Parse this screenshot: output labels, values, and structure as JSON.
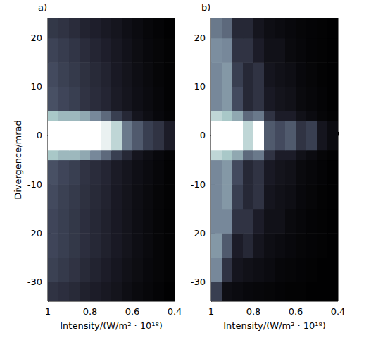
{
  "chart_data": [
    {
      "type": "heatmap",
      "panel": "a)",
      "ylabel": "Divergence/mrad",
      "xlabel": "Intensity/(W/m² · 10¹⁸)",
      "xlim": [
        1,
        0.4
      ],
      "xticks": [
        1,
        0.8,
        0.6,
        0.4
      ],
      "ylim": [
        -34,
        24
      ],
      "yticks": [
        -30,
        -20,
        -10,
        0,
        10,
        20
      ],
      "color_range": [
        0,
        1
      ],
      "x_edges": [
        1,
        0.95,
        0.9,
        0.85,
        0.8,
        0.75,
        0.7,
        0.65,
        0.6,
        0.55,
        0.5,
        0.45,
        0.4
      ],
      "y_edges": [
        -34,
        -30,
        -25,
        -20,
        -15,
        -10,
        -5,
        -3,
        3,
        5,
        10,
        15,
        20,
        24
      ],
      "cells": [
        [
          0.3,
          0.28,
          0.26,
          0.22,
          0.2,
          0.17,
          0.14,
          0.1,
          0.07,
          0.05,
          0.03,
          0.01
        ],
        [
          0.36,
          0.33,
          0.3,
          0.26,
          0.23,
          0.2,
          0.16,
          0.12,
          0.09,
          0.06,
          0.04,
          0.02
        ],
        [
          0.38,
          0.35,
          0.32,
          0.28,
          0.25,
          0.22,
          0.18,
          0.14,
          0.1,
          0.07,
          0.04,
          0.02
        ],
        [
          0.38,
          0.35,
          0.32,
          0.28,
          0.25,
          0.22,
          0.18,
          0.14,
          0.1,
          0.07,
          0.04,
          0.02
        ],
        [
          0.4,
          0.36,
          0.33,
          0.29,
          0.26,
          0.23,
          0.18,
          0.14,
          0.1,
          0.07,
          0.04,
          0.02
        ],
        [
          0.42,
          0.38,
          0.35,
          0.3,
          0.27,
          0.24,
          0.19,
          0.15,
          0.11,
          0.08,
          0.05,
          0.02
        ],
        [
          0.8,
          0.75,
          0.75,
          0.7,
          0.6,
          0.5,
          0.35,
          0.25,
          0.15,
          0.1,
          0.06,
          0.03
        ],
        [
          1,
          1,
          1,
          1,
          1,
          0.95,
          0.85,
          0.55,
          0.45,
          0.35,
          0.3,
          0.2
        ],
        [
          0.8,
          0.75,
          0.75,
          0.7,
          0.6,
          0.5,
          0.35,
          0.25,
          0.15,
          0.1,
          0.06,
          0.03
        ],
        [
          0.42,
          0.38,
          0.35,
          0.3,
          0.27,
          0.24,
          0.19,
          0.15,
          0.11,
          0.08,
          0.05,
          0.02
        ],
        [
          0.4,
          0.36,
          0.33,
          0.29,
          0.26,
          0.23,
          0.18,
          0.14,
          0.1,
          0.07,
          0.04,
          0.02
        ],
        [
          0.37,
          0.34,
          0.31,
          0.27,
          0.24,
          0.21,
          0.17,
          0.13,
          0.09,
          0.06,
          0.04,
          0.02
        ],
        [
          0.32,
          0.3,
          0.27,
          0.23,
          0.21,
          0.18,
          0.15,
          0.11,
          0.08,
          0.05,
          0.03,
          0.01
        ]
      ]
    },
    {
      "type": "heatmap",
      "panel": "b)",
      "xlabel": "Intensity/(W/m² · 10¹⁸)",
      "xlim": [
        1,
        0.4
      ],
      "xticks": [
        1,
        0.8,
        0.6,
        0.4
      ],
      "ylim": [
        -34,
        24
      ],
      "yticks": [
        -30,
        -20,
        -10,
        0,
        10,
        20
      ],
      "color_range": [
        0,
        1
      ],
      "x_edges": [
        1,
        0.95,
        0.9,
        0.85,
        0.8,
        0.75,
        0.7,
        0.65,
        0.6,
        0.55,
        0.5,
        0.45,
        0.4
      ],
      "y_edges": [
        -34,
        -30,
        -25,
        -20,
        -15,
        -10,
        -5,
        -3,
        3,
        5,
        10,
        15,
        20,
        24
      ],
      "cells": [
        [
          0.35,
          0.1,
          0.08,
          0.06,
          0.05,
          0.04,
          0.03,
          0.02,
          0.02,
          0.01,
          0.01,
          0.01
        ],
        [
          0.6,
          0.3,
          0.15,
          0.12,
          0.1,
          0.08,
          0.05,
          0.04,
          0.03,
          0.02,
          0.01,
          0.01
        ],
        [
          0.65,
          0.45,
          0.2,
          0.25,
          0.15,
          0.1,
          0.08,
          0.06,
          0.04,
          0.03,
          0.02,
          0.01
        ],
        [
          0.6,
          0.6,
          0.3,
          0.3,
          0.2,
          0.12,
          0.12,
          0.07,
          0.05,
          0.03,
          0.02,
          0.01
        ],
        [
          0.6,
          0.65,
          0.35,
          0.25,
          0.3,
          0.15,
          0.12,
          0.1,
          0.06,
          0.04,
          0.02,
          0.01
        ],
        [
          0.6,
          0.65,
          0.4,
          0.25,
          0.3,
          0.18,
          0.14,
          0.12,
          0.07,
          0.05,
          0.03,
          0.01
        ],
        [
          0.85,
          0.8,
          0.7,
          0.5,
          0.55,
          0.3,
          0.2,
          0.2,
          0.12,
          0.08,
          0.04,
          0.02
        ],
        [
          1,
          1,
          1,
          0.85,
          1,
          0.45,
          0.4,
          0.45,
          0.3,
          0.35,
          0.15,
          0.08
        ],
        [
          0.85,
          0.8,
          0.7,
          0.5,
          0.55,
          0.3,
          0.2,
          0.2,
          0.12,
          0.08,
          0.04,
          0.02
        ],
        [
          0.6,
          0.65,
          0.4,
          0.25,
          0.3,
          0.18,
          0.14,
          0.12,
          0.07,
          0.05,
          0.03,
          0.01
        ],
        [
          0.6,
          0.65,
          0.35,
          0.25,
          0.3,
          0.15,
          0.12,
          0.1,
          0.06,
          0.04,
          0.02,
          0.01
        ],
        [
          0.62,
          0.6,
          0.3,
          0.3,
          0.2,
          0.12,
          0.12,
          0.07,
          0.05,
          0.03,
          0.02,
          0.01
        ],
        [
          0.55,
          0.5,
          0.25,
          0.25,
          0.15,
          0.1,
          0.08,
          0.06,
          0.04,
          0.03,
          0.02,
          0.01
        ]
      ]
    }
  ]
}
